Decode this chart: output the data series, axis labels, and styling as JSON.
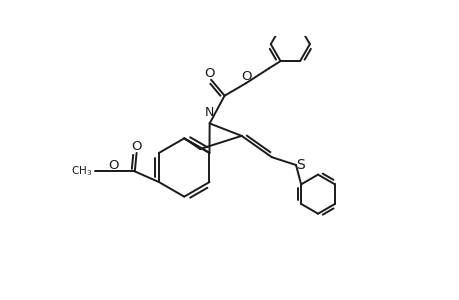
{
  "bg_color": "#ffffff",
  "line_color": "#1a1a1a",
  "line_width": 1.4,
  "fig_width": 4.6,
  "fig_height": 3.0,
  "dpi": 100,
  "xlim": [
    0,
    10
  ],
  "ylim": [
    0,
    6.5
  ]
}
